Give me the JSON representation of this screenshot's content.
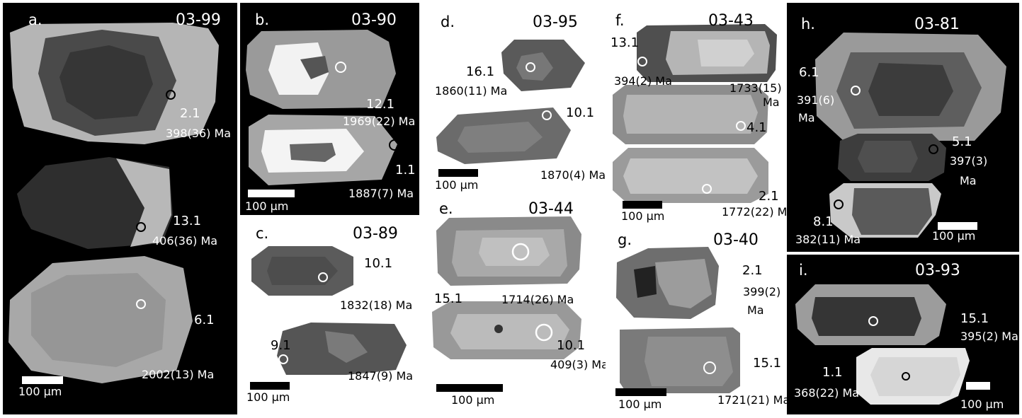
{
  "panels": [
    {
      "id": "a",
      "label": "a.",
      "sample": "03-99",
      "ann": [
        {
          "spot": "2.1",
          "age": "398(36) Ma"
        },
        {
          "spot": "13.1",
          "age": "406(36) Ma"
        },
        {
          "spot": "6.1",
          "age": "2002(13) Ma"
        }
      ],
      "scale": "100 µm"
    },
    {
      "id": "b",
      "label": "b.",
      "sample": "03-90",
      "ann": [
        {
          "spot": "12.1",
          "age": "1969(22) Ma"
        },
        {
          "spot": "1.1",
          "age": "1887(7) Ma"
        }
      ],
      "scale": "100 µm"
    },
    {
      "id": "c",
      "label": "c.",
      "sample": "03-89",
      "ann": [
        {
          "spot": "10.1",
          "age": "1832(18) Ma"
        },
        {
          "spot": "9.1",
          "age": "1847(9) Ma"
        }
      ],
      "scale": "100 µm"
    },
    {
      "id": "d",
      "label": "d.",
      "sample": "03-95",
      "ann": [
        {
          "spot": "16.1",
          "age": "1860(11) Ma"
        },
        {
          "spot": "10.1",
          "age": "1870(4) Ma"
        }
      ],
      "scale": "100 µm"
    },
    {
      "id": "e",
      "label": "e.",
      "sample": "03-44",
      "ann": [
        {
          "spot": "15.1",
          "age": "1714(26) Ma"
        },
        {
          "spot": "10.1",
          "age": "409(3) Ma"
        }
      ],
      "scale": "100 µm"
    },
    {
      "id": "f",
      "label": "f.",
      "sample": "03-43",
      "ann": [
        {
          "spot": "13.1",
          "age": "394(2) Ma"
        },
        {
          "spot": "",
          "age": "1733(15)"
        },
        {
          "spot": "",
          "age": "Ma"
        },
        {
          "spot": "4.1",
          "age": ""
        },
        {
          "spot": "2.1",
          "age": "1772(22) Ma"
        }
      ],
      "scale": "100 µm"
    },
    {
      "id": "g",
      "label": "g.",
      "sample": "03-40",
      "ann": [
        {
          "spot": "2.1",
          "age": "399(2)"
        },
        {
          "spot": "",
          "age": "Ma"
        },
        {
          "spot": "15.1",
          "age": "1721(21) Ma"
        }
      ],
      "scale": "100 µm"
    },
    {
      "id": "h",
      "label": "h.",
      "sample": "03-81",
      "ann": [
        {
          "spot": "6.1",
          "age": "391(6)"
        },
        {
          "spot": "",
          "age": "Ma"
        },
        {
          "spot": "5.1",
          "age": "397(3)"
        },
        {
          "spot": "",
          "age": "Ma"
        },
        {
          "spot": "8.1",
          "age": "382(11) Ma"
        }
      ],
      "scale": "100 µm"
    },
    {
      "id": "i",
      "label": "i.",
      "sample": "03-93",
      "ann": [
        {
          "spot": "15.1",
          "age": "395(2) Ma"
        },
        {
          "spot": "1.1",
          "age": "368(22) Ma"
        }
      ],
      "scale": "100 µm"
    }
  ]
}
